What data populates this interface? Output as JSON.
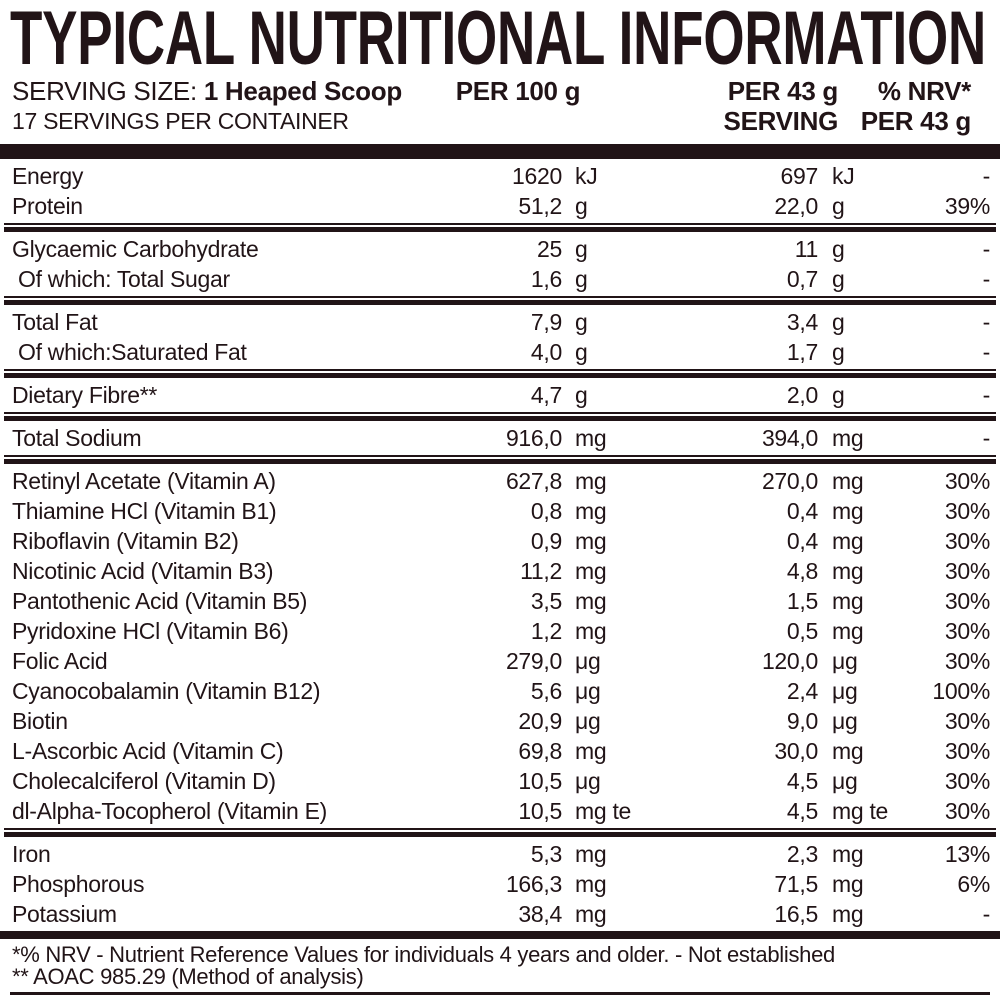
{
  "title": "TYPICAL NUTRITIONAL INFORMATION",
  "colors": {
    "ink": "#211417",
    "background": "#ffffff"
  },
  "header": {
    "serving_size_label": "SERVING SIZE:",
    "serving_size_value": "1 Heaped Scoop",
    "servings_per_container": "17 SERVINGS PER CONTAINER",
    "col_per100": "PER 100 g",
    "col_per43_line1": "PER 43 g",
    "col_per43_line2": "SERVING",
    "col_nrv_line1": "% NRV*",
    "col_nrv_line2": "PER 43 g"
  },
  "sections": [
    {
      "rows": [
        {
          "name": "Energy",
          "per100": "1620",
          "unit100": "kJ",
          "per43": "697",
          "unit43": "kJ",
          "nrv": "-"
        },
        {
          "name": "Protein",
          "per100": "51,2",
          "unit100": "g",
          "per43": "22,0",
          "unit43": "g",
          "nrv": "39%"
        }
      ]
    },
    {
      "rows": [
        {
          "name": "Glycaemic Carbohydrate",
          "per100": "25",
          "unit100": "g",
          "per43": "11",
          "unit43": "g",
          "nrv": "-"
        },
        {
          "name": "Of which: Total Sugar",
          "indent": true,
          "per100": "1,6",
          "unit100": "g",
          "per43": "0,7",
          "unit43": "g",
          "nrv": "-"
        }
      ]
    },
    {
      "rows": [
        {
          "name": "Total Fat",
          "per100": "7,9",
          "unit100": "g",
          "per43": "3,4",
          "unit43": "g",
          "nrv": "-"
        },
        {
          "name": "Of which:Saturated Fat",
          "indent": true,
          "per100": "4,0",
          "unit100": "g",
          "per43": "1,7",
          "unit43": "g",
          "nrv": "-"
        }
      ]
    },
    {
      "rows": [
        {
          "name": "Dietary Fibre**",
          "per100": "4,7",
          "unit100": "g",
          "per43": "2,0",
          "unit43": "g",
          "nrv": "-"
        }
      ]
    },
    {
      "rows": [
        {
          "name": "Total Sodium",
          "per100": "916,0",
          "unit100": "mg",
          "per43": "394,0",
          "unit43": "mg",
          "nrv": "-"
        }
      ]
    },
    {
      "rows": [
        {
          "name": "Retinyl Acetate (Vitamin A)",
          "per100": "627,8",
          "unit100": "mg",
          "per43": "270,0",
          "unit43": "mg",
          "nrv": "30%"
        },
        {
          "name": "Thiamine HCl (Vitamin B1)",
          "per100": "0,8",
          "unit100": "mg",
          "per43": "0,4",
          "unit43": "mg",
          "nrv": "30%"
        },
        {
          "name": "Riboflavin (Vitamin B2)",
          "per100": "0,9",
          "unit100": "mg",
          "per43": "0,4",
          "unit43": "mg",
          "nrv": "30%"
        },
        {
          "name": "Nicotinic Acid (Vitamin B3)",
          "per100": "11,2",
          "unit100": "mg",
          "per43": "4,8",
          "unit43": "mg",
          "nrv": "30%"
        },
        {
          "name": "Pantothenic Acid (Vitamin B5)",
          "per100": "3,5",
          "unit100": "mg",
          "per43": "1,5",
          "unit43": "mg",
          "nrv": "30%"
        },
        {
          "name": "Pyridoxine HCl (Vitamin B6)",
          "per100": "1,2",
          "unit100": "mg",
          "per43": "0,5",
          "unit43": "mg",
          "nrv": "30%"
        },
        {
          "name": "Folic Acid",
          "per100": "279,0",
          "unit100": "μg",
          "per43": "120,0",
          "unit43": "μg",
          "nrv": "30%"
        },
        {
          "name": "Cyanocobalamin (Vitamin B12)",
          "per100": "5,6",
          "unit100": "μg",
          "per43": "2,4",
          "unit43": "μg",
          "nrv": "100%"
        },
        {
          "name": "Biotin",
          "per100": "20,9",
          "unit100": "μg",
          "per43": "9,0",
          "unit43": "μg",
          "nrv": "30%"
        },
        {
          "name": "L-Ascorbic Acid (Vitamin C)",
          "per100": "69,8",
          "unit100": "mg",
          "per43": "30,0",
          "unit43": "mg",
          "nrv": "30%"
        },
        {
          "name": "Cholecalciferol (Vitamin D)",
          "per100": "10,5",
          "unit100": "μg",
          "per43": "4,5",
          "unit43": "μg",
          "nrv": "30%"
        },
        {
          "name": "dl-Alpha-Tocopherol (Vitamin E)",
          "per100": "10,5",
          "unit100": "mg te",
          "per43": "4,5",
          "unit43": "mg te",
          "nrv": "30%"
        }
      ]
    },
    {
      "rows": [
        {
          "name": "Iron",
          "per100": "5,3",
          "unit100": "mg",
          "per43": "2,3",
          "unit43": "mg",
          "nrv": "13%"
        },
        {
          "name": "Phosphorous",
          "per100": "166,3",
          "unit100": "mg",
          "per43": "71,5",
          "unit43": "mg",
          "nrv": "6%"
        },
        {
          "name": "Potassium",
          "per100": "38,4",
          "unit100": "mg",
          "per43": "16,5",
          "unit43": "mg",
          "nrv": "-"
        }
      ]
    }
  ],
  "footnotes": [
    "*% NRV - Nutrient Reference Values for individuals 4 years and older. - Not established",
    "** AOAC 985.29 (Method of analysis)"
  ]
}
